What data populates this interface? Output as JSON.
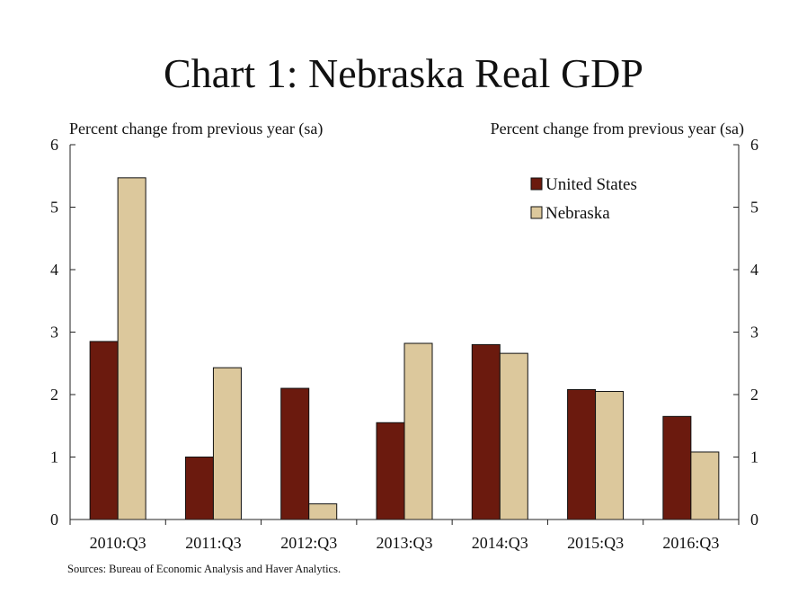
{
  "chart_data": {
    "type": "bar",
    "title": "Chart 1: Nebraska Real GDP",
    "ylabel_left": "Percent change from previous year (sa)",
    "ylabel_right": "Percent change from previous year (sa)",
    "categories": [
      "2010:Q3",
      "2011:Q3",
      "2012:Q3",
      "2013:Q3",
      "2014:Q3",
      "2015:Q3",
      "2016:Q3"
    ],
    "series": [
      {
        "name": "United States",
        "color": "#6b1a0e",
        "values": [
          2.85,
          1.0,
          2.1,
          1.55,
          2.8,
          2.08,
          1.65
        ]
      },
      {
        "name": "Nebraska",
        "color": "#dcc89c",
        "values": [
          5.47,
          2.43,
          0.25,
          2.82,
          2.66,
          2.05,
          1.08
        ]
      }
    ],
    "ylim": [
      0,
      6
    ],
    "yticks": [
      "0",
      "1",
      "2",
      "3",
      "4",
      "5",
      "6"
    ],
    "legend_position": "top-right",
    "grid": false,
    "source": "Sources: Bureau of Economic Analysis and Haver Analytics."
  }
}
